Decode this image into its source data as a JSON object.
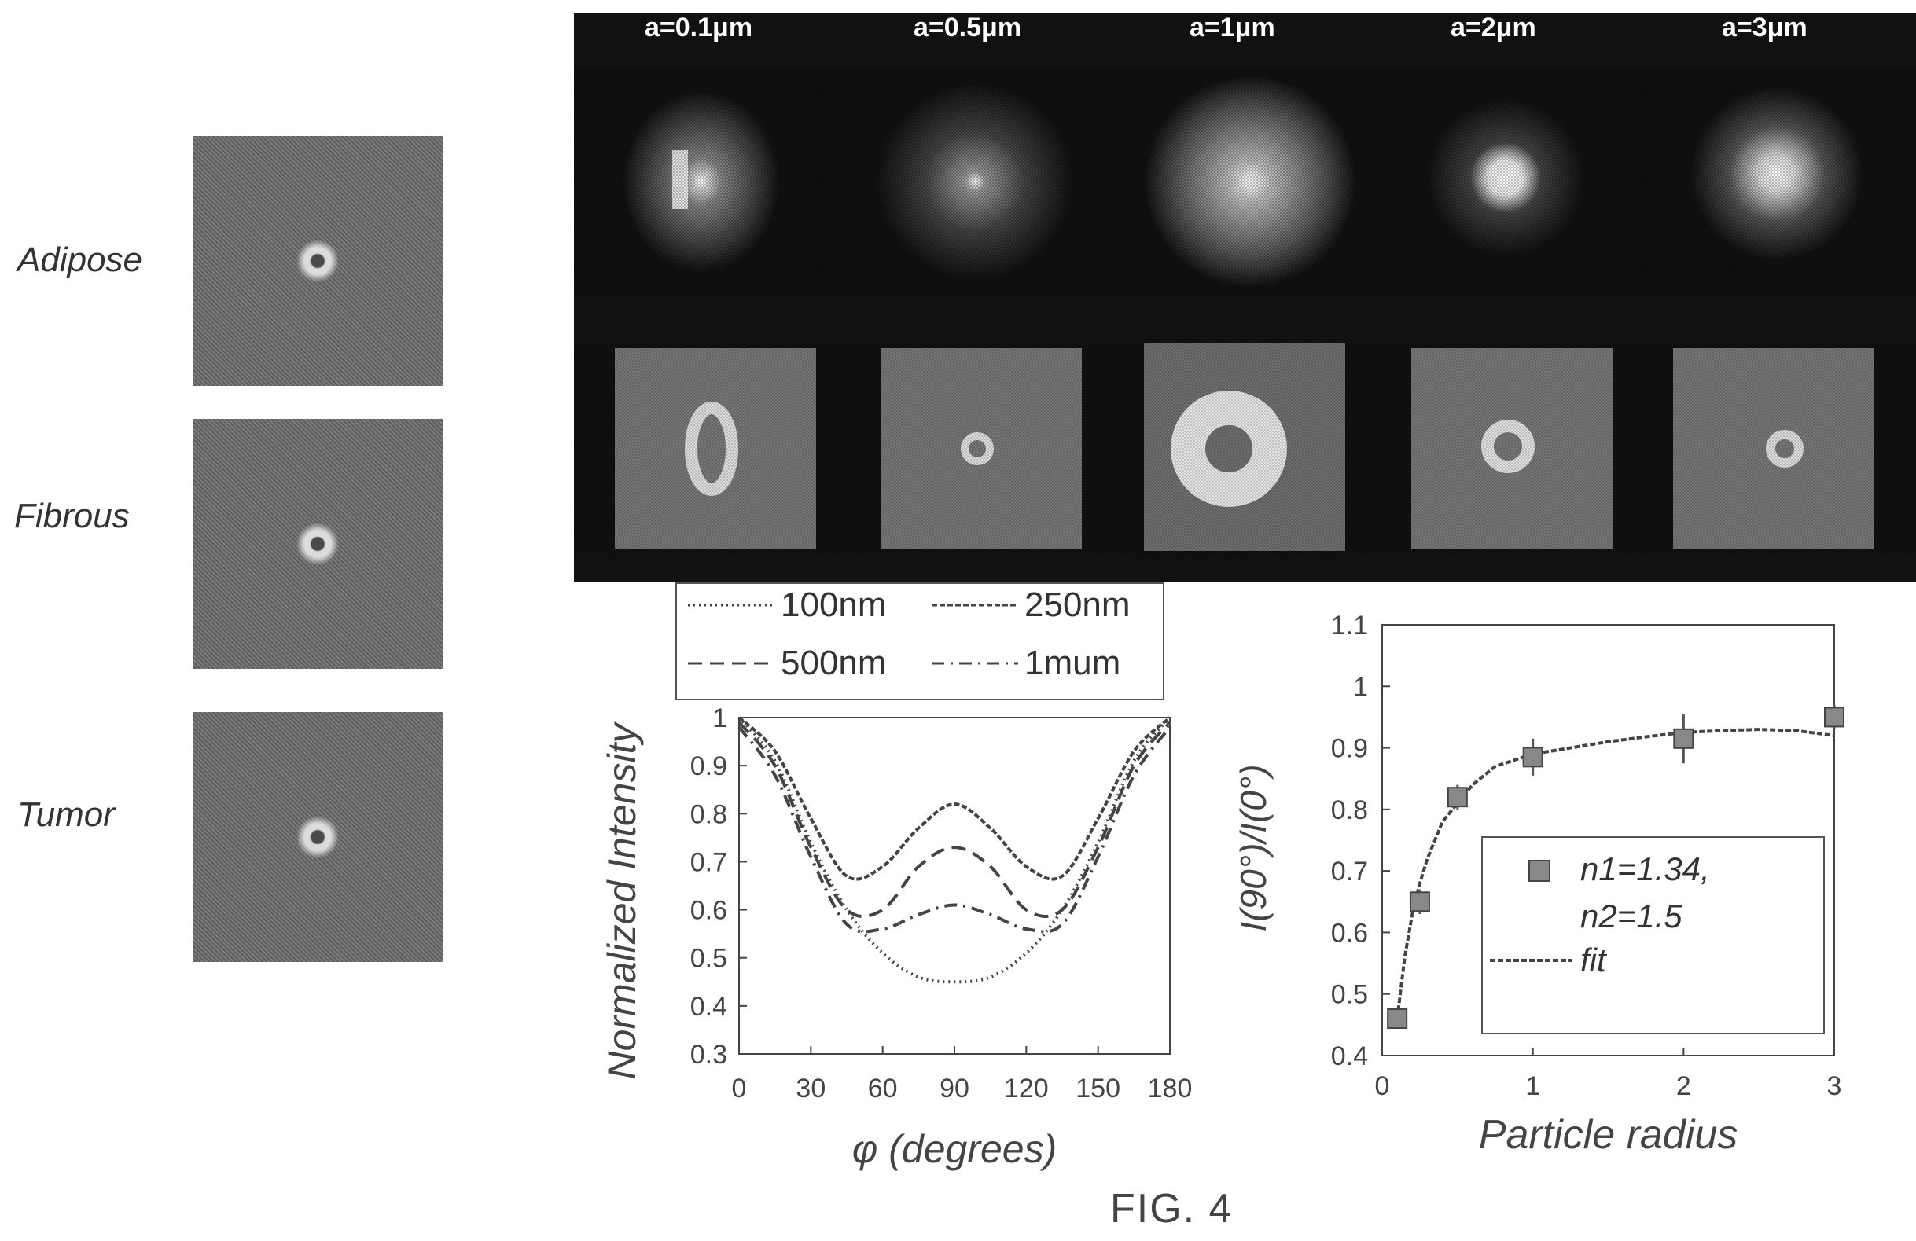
{
  "tissues": [
    {
      "label": "Adipose"
    },
    {
      "label": "Fibrous"
    },
    {
      "label": "Tumor"
    }
  ],
  "simulation_labels": [
    "a=0.1μm",
    "a=0.5μm",
    "a=1μm",
    "a=2μm",
    "a=3μm"
  ],
  "figure_caption": "FIG. 4",
  "colors": {
    "panel_background": "#111111",
    "line": "#444444"
  },
  "chart_data": [
    {
      "type": "line",
      "xlabel": "φ (degrees)",
      "ylabel": "Normalized Intensity",
      "xlim": [
        0,
        180
      ],
      "ylim": [
        0.3,
        1
      ],
      "xticks": [
        0,
        30,
        60,
        90,
        120,
        150,
        180
      ],
      "yticks": [
        0.3,
        0.4,
        0.5,
        0.6,
        0.7,
        0.8,
        0.9,
        1
      ],
      "ytick_labels": [
        "0.3",
        "0.4",
        "0.5",
        "0.6",
        "0.7",
        "0.8",
        "0.9",
        "1"
      ],
      "legend_position": "top",
      "x": [
        0,
        15,
        30,
        45,
        60,
        75,
        90,
        105,
        120,
        135,
        150,
        165,
        180
      ],
      "series": [
        {
          "name": "100nm",
          "style": "dotted",
          "values": [
            1.0,
            0.91,
            0.74,
            0.6,
            0.51,
            0.46,
            0.45,
            0.46,
            0.51,
            0.6,
            0.74,
            0.91,
            1.0
          ]
        },
        {
          "name": "250nm",
          "style": "dashed-dense",
          "values": [
            1.0,
            0.93,
            0.79,
            0.67,
            0.69,
            0.77,
            0.82,
            0.77,
            0.69,
            0.67,
            0.79,
            0.93,
            1.0
          ]
        },
        {
          "name": "500nm",
          "style": "dashed",
          "values": [
            0.99,
            0.9,
            0.73,
            0.6,
            0.6,
            0.69,
            0.73,
            0.69,
            0.6,
            0.6,
            0.73,
            0.9,
            0.99
          ]
        },
        {
          "name": "1mum",
          "style": "dash-dot",
          "values": [
            0.98,
            0.88,
            0.71,
            0.57,
            0.56,
            0.59,
            0.61,
            0.59,
            0.56,
            0.57,
            0.71,
            0.88,
            0.98
          ]
        }
      ]
    },
    {
      "type": "scatter",
      "xlabel": "Particle radius",
      "ylabel": "I(90°)/I(0°)",
      "xlim": [
        0,
        3
      ],
      "ylim": [
        0.4,
        1.1
      ],
      "xticks": [
        0,
        1,
        2,
        3
      ],
      "yticks": [
        0.4,
        0.5,
        0.6,
        0.7,
        0.8,
        0.9,
        1,
        1.1
      ],
      "ytick_labels": [
        "0.4",
        "0.5",
        "0.6",
        "0.7",
        "0.8",
        "0.9",
        "1",
        "1.1"
      ],
      "legend_position": "bottom-right",
      "points": {
        "name": "n1=1.34, n2=1.5",
        "name_lines": [
          "n1=1.34,",
          "n2=1.5"
        ],
        "x": [
          0.1,
          0.25,
          0.5,
          1,
          2,
          3
        ],
        "y": [
          0.46,
          0.65,
          0.82,
          0.885,
          0.915,
          0.95
        ],
        "yerr": [
          0.01,
          0.02,
          0.02,
          0.03,
          0.04,
          0.02
        ]
      },
      "fit": {
        "name": "fit",
        "x": [
          0.1,
          0.15,
          0.2,
          0.25,
          0.3,
          0.4,
          0.5,
          0.6,
          0.75,
          1,
          1.25,
          1.5,
          1.75,
          2,
          2.25,
          2.5,
          2.75,
          3
        ],
        "y": [
          0.46,
          0.56,
          0.63,
          0.68,
          0.72,
          0.78,
          0.81,
          0.84,
          0.87,
          0.89,
          0.9,
          0.91,
          0.918,
          0.925,
          0.928,
          0.93,
          0.928,
          0.92
        ]
      }
    }
  ]
}
